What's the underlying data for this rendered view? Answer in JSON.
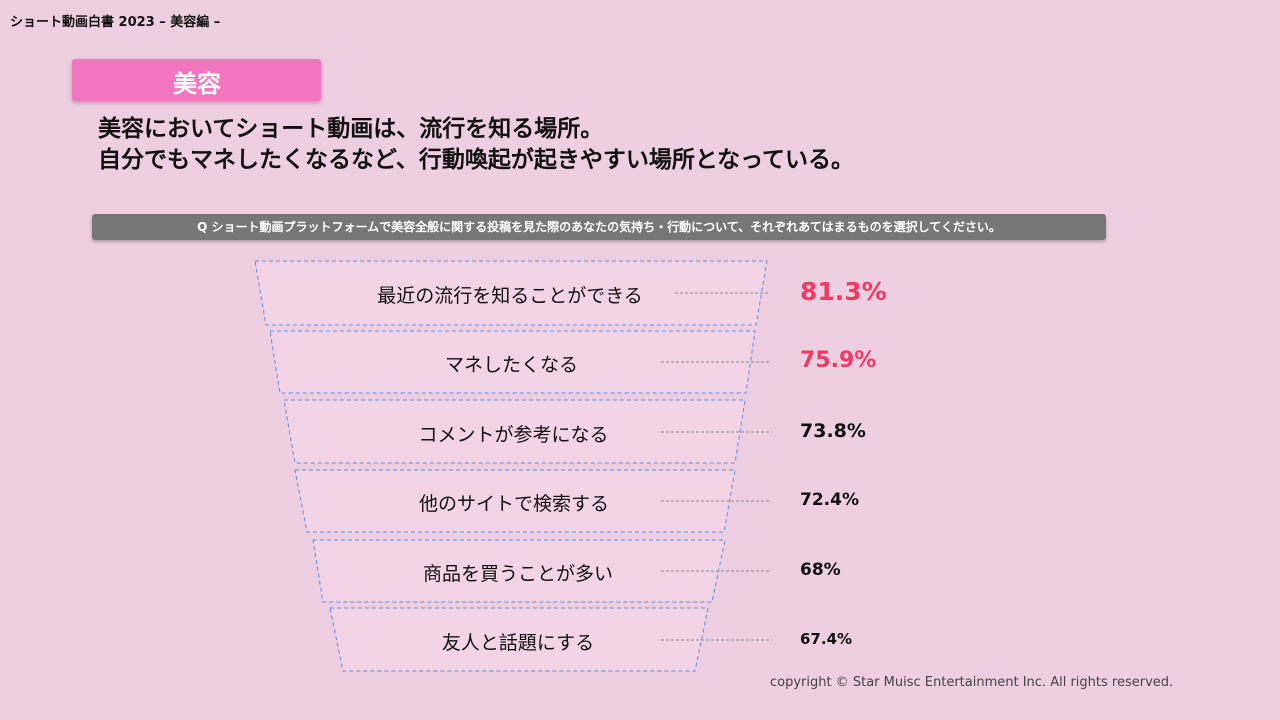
{
  "header": {
    "title": "ショート動画白書 2023 – 美容編 –"
  },
  "category": {
    "label": "美容"
  },
  "headline": {
    "line1": "美容においてショート動画は、流行を知る場所。",
    "line2": "自分でもマネしたくなるなど、行動喚起が起きやすい場所となっている。"
  },
  "question": {
    "text": "Q ショート動画プラットフォームで美容全般に関する投稿を見た際のあなたの気持ち・行動について、それぞれあてはまるものを選択してください。"
  },
  "funnel": {
    "stages": [
      {
        "label": "最近の流行を知ることができる",
        "value": "81.3%",
        "highlight": true
      },
      {
        "label": "マネしたくなる",
        "value": "75.9%",
        "highlight": true
      },
      {
        "label": "コメントが参考になる",
        "value": "73.8%",
        "highlight": false
      },
      {
        "label": "他のサイトで検索する",
        "value": "72.4%",
        "highlight": false
      },
      {
        "label": "商品を買うことが多い",
        "value": "68%",
        "highlight": false
      },
      {
        "label": "友人と話題にする",
        "value": "67.4%",
        "highlight": false
      }
    ]
  },
  "colors": {
    "background": "#edcfe1",
    "badge": "#f475bf",
    "highlight_value": "#ef3a63",
    "funnel_fill": "#f3d4e6",
    "funnel_border": "#5b8ee8",
    "question_bar": "#777777"
  },
  "footer": {
    "copyright": "copyright © Star Muisc Entertainment Inc. All rights reserved."
  }
}
